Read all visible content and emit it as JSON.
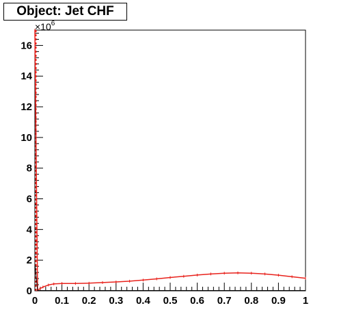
{
  "chart_data": {
    "type": "line",
    "title": "Object: Jet CHF",
    "xlabel": "",
    "ylabel": "",
    "y_multiplier_label": "×10",
    "y_multiplier_exponent": "6",
    "xlim": [
      0,
      1
    ],
    "ylim": [
      0,
      17
    ],
    "x_ticks": [
      "0",
      "0.1",
      "0.2",
      "0.3",
      "0.4",
      "0.5",
      "0.6",
      "0.7",
      "0.8",
      "0.9",
      "1"
    ],
    "y_ticks": [
      "0",
      "2",
      "4",
      "6",
      "8",
      "10",
      "12",
      "14",
      "16"
    ],
    "grid": false,
    "legend": "none",
    "series": [
      {
        "color": "#e8211b",
        "x": [
          0.0,
          0.01,
          0.02,
          0.03,
          0.05,
          0.07,
          0.1,
          0.15,
          0.2,
          0.25,
          0.3,
          0.35,
          0.4,
          0.45,
          0.5,
          0.55,
          0.6,
          0.65,
          0.7,
          0.75,
          0.8,
          0.85,
          0.9,
          0.95,
          1.0
        ],
        "values": [
          17.0,
          0.05,
          0.15,
          0.25,
          0.38,
          0.45,
          0.48,
          0.48,
          0.5,
          0.54,
          0.58,
          0.63,
          0.7,
          0.78,
          0.87,
          0.95,
          1.03,
          1.1,
          1.15,
          1.17,
          1.15,
          1.1,
          1.02,
          0.92,
          0.82
        ]
      },
      {
        "color": "#000000",
        "x": [
          0.0,
          0.01,
          0.02,
          0.05,
          0.1,
          0.2,
          0.3,
          0.4,
          0.5,
          0.6,
          0.7,
          0.8,
          0.9,
          1.0
        ],
        "values": [
          1.8,
          0.02,
          0.02,
          0.02,
          0.02,
          0.02,
          0.02,
          0.02,
          0.02,
          0.02,
          0.02,
          0.02,
          0.02,
          0.02
        ]
      }
    ]
  }
}
